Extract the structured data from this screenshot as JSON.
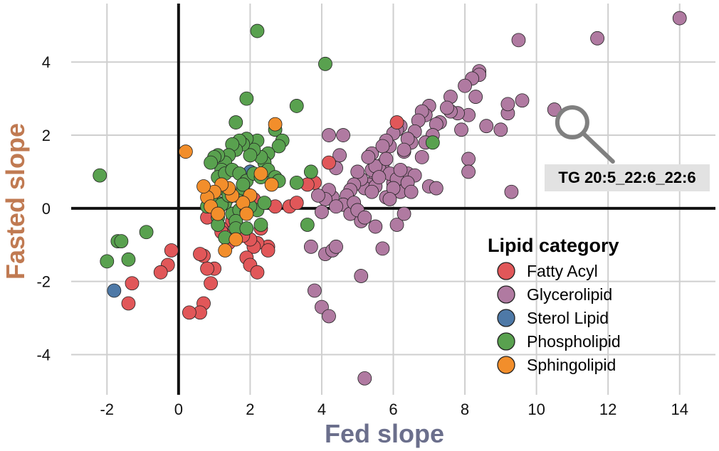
{
  "chart_data": {
    "type": "scatter",
    "xlabel": "Fed slope",
    "ylabel": "Fasted slope",
    "xlabel_color": "#6b6f8c",
    "ylabel_color": "#c07a52",
    "xlim": [
      -3,
      15
    ],
    "ylim": [
      -5.1,
      5.6
    ],
    "xticks": [
      -2,
      0,
      2,
      4,
      6,
      8,
      10,
      12,
      14
    ],
    "xtick_labels": [
      "-2",
      "0",
      "2",
      "4",
      "6",
      "8",
      "10",
      "12",
      "14"
    ],
    "yticks": [
      -4,
      -2,
      0,
      2,
      4
    ],
    "ytick_labels": [
      "-4",
      "-2",
      "0",
      "2",
      "4"
    ],
    "grid": true,
    "zero_lines": true,
    "legend": {
      "title": "Lipid category",
      "placement": "lower-right",
      "entries": [
        "Fatty Acyl",
        "Glycerolipid",
        "Sterol Lipid",
        "Phospholipid",
        "Sphingolipid"
      ]
    },
    "annotation": {
      "text": "TG 20:5_22:6_22:6",
      "x": 11.0,
      "y": 2.35
    },
    "series": [
      {
        "name": "Glycerolipid",
        "color": "#b07aa1",
        "x": [
          14.0,
          11.7,
          9.5,
          10.5,
          9.6,
          9.2,
          9.2,
          9.0,
          8.6,
          8.4,
          8.4,
          8.3,
          8.2,
          8.1,
          8.1,
          8.0,
          7.9,
          7.8,
          7.6,
          7.6,
          7.5,
          7.3,
          7.2,
          7.1,
          7.0,
          6.9,
          6.9,
          6.8,
          6.7,
          6.6,
          6.5,
          6.4,
          6.3,
          6.2,
          6.1,
          6.0,
          5.9,
          5.8,
          5.7,
          5.6,
          5.5,
          5.4,
          5.4,
          5.3,
          5.2,
          5.1,
          5.0,
          4.9,
          4.8,
          4.7,
          4.6,
          4.5,
          4.4,
          4.3,
          4.2,
          4.1,
          4.0,
          3.9,
          3.7,
          5.5,
          5.8,
          6.0,
          6.2,
          6.4,
          6.6,
          6.8,
          7.0,
          5.9,
          6.1,
          6.3,
          5.7,
          5.5,
          5.3,
          5.6,
          5.8,
          6.0,
          6.2,
          6.4,
          5.4,
          4.6,
          4.2,
          4.4,
          4.8,
          5.1,
          4.9,
          5.0,
          5.2,
          6.1,
          6.3,
          5.9,
          6.5,
          7.2,
          8.1,
          9.3,
          4.0,
          4.1,
          4.2,
          5.2,
          3.8,
          4.3,
          4.4,
          5.5,
          5.1,
          5.7
        ],
        "y": [
          5.2,
          4.65,
          4.6,
          2.7,
          2.95,
          2.6,
          2.85,
          2.15,
          2.25,
          3.75,
          3.65,
          3.05,
          3.55,
          2.55,
          1.35,
          3.35,
          2.15,
          2.6,
          3.05,
          2.65,
          2.75,
          2.35,
          2.3,
          2.0,
          2.8,
          1.8,
          2.55,
          2.65,
          2.4,
          2.1,
          1.8,
          1.9,
          1.55,
          2.25,
          2.15,
          2.05,
          1.7,
          1.85,
          1.2,
          1.1,
          0.9,
          1.05,
          1.5,
          0.65,
          0.55,
          0.8,
          1.0,
          0.65,
          0.5,
          0.35,
          0.1,
          1.45,
          1.1,
          0.3,
          0.5,
          0.25,
          -0.1,
          0.35,
          -1.05,
          0.6,
          0.3,
          0.7,
          0.45,
          0.95,
          0.9,
          1.4,
          0.6,
          0.95,
          0.8,
          1.6,
          1.7,
          1.15,
          1.4,
          0.85,
          1.35,
          0.55,
          1.05,
          0.7,
          0.45,
          2.0,
          2.0,
          0.05,
          -0.15,
          -0.35,
          0.15,
          -0.05,
          -0.25,
          -0.45,
          -0.15,
          0.25,
          0.45,
          0.55,
          1.0,
          0.45,
          -2.7,
          -1.25,
          -2.95,
          -4.65,
          -2.25,
          -1.15,
          -1.05,
          -0.5,
          -1.85,
          -1.1
        ]
      },
      {
        "name": "Fatty Acyl",
        "color": "#e15759",
        "x": [
          6.1,
          4.2,
          3.8,
          3.1,
          2.7,
          2.5,
          2.3,
          2.2,
          2.1,
          2.0,
          1.9,
          1.7,
          1.5,
          1.4,
          1.3,
          1.2,
          1.0,
          0.9,
          0.8,
          0.7,
          0.6,
          0.8,
          1.1,
          1.4,
          1.6,
          1.8,
          2.0,
          2.2,
          2.5,
          -0.2,
          -0.3,
          -0.5,
          -1.3,
          -1.4,
          0.7,
          0.6,
          0.3,
          1.2,
          1.5,
          1.9,
          2.1,
          1.7,
          3.3,
          3.6
        ],
        "y": [
          2.35,
          1.25,
          0.7,
          0.05,
          0.05,
          -1.05,
          -0.55,
          -0.95,
          -1.05,
          -0.85,
          -1.35,
          -0.65,
          -0.35,
          -0.95,
          -0.75,
          -0.55,
          -1.65,
          -2.05,
          -1.65,
          -1.3,
          -1.25,
          -0.25,
          -0.05,
          0.3,
          -0.35,
          -0.75,
          -1.55,
          -1.75,
          -1.15,
          -1.15,
          -1.55,
          -1.75,
          -2.05,
          -2.6,
          -2.6,
          -2.85,
          -2.85,
          -0.65,
          -0.75,
          0.1,
          0.25,
          -0.05,
          0.15,
          0.65
        ]
      },
      {
        "name": "Sterol Lipid",
        "color": "#4e79a7",
        "x": [
          -1.8,
          2.0
        ],
        "y": [
          -2.25,
          1.0
        ]
      },
      {
        "name": "Phospholipid",
        "color": "#59a14f",
        "x": [
          2.2,
          4.1,
          3.3,
          1.9,
          1.6,
          2.7,
          2.9,
          2.8,
          2.5,
          2.4,
          2.3,
          2.2,
          2.1,
          2.0,
          1.9,
          1.8,
          1.7,
          1.6,
          1.5,
          1.4,
          1.3,
          1.2,
          1.1,
          1.0,
          0.9,
          1.1,
          1.3,
          1.5,
          1.7,
          1.9,
          2.1,
          2.3,
          2.5,
          2.7,
          3.3,
          3.7,
          3.6,
          1.4,
          1.6,
          1.8,
          2.0,
          1.2,
          1.0,
          0.8,
          1.1,
          1.5,
          1.7,
          1.3,
          1.6,
          1.9,
          2.2,
          2.4,
          2.8,
          0.9,
          1.2,
          1.4,
          1.8,
          2.0,
          -2.2,
          -1.7,
          -1.4,
          -0.9,
          -1.6,
          -2.0,
          7.1,
          1.3,
          1.6,
          1.1,
          1.9,
          2.3
        ],
        "y": [
          4.85,
          3.95,
          2.8,
          3.0,
          2.35,
          2.15,
          1.85,
          1.7,
          1.5,
          1.25,
          1.4,
          1.85,
          1.6,
          1.45,
          1.9,
          1.75,
          1.85,
          1.6,
          1.75,
          1.45,
          1.25,
          1.05,
          1.45,
          1.4,
          1.25,
          0.85,
          0.95,
          1.05,
          0.95,
          0.75,
          0.95,
          0.85,
          1.05,
          0.85,
          0.7,
          1.0,
          -0.45,
          0.45,
          0.35,
          0.55,
          0.35,
          0.55,
          0.25,
          0.05,
          -0.25,
          -0.15,
          -0.05,
          0.15,
          -0.35,
          -0.1,
          -0.05,
          0.15,
          0.75,
          0.25,
          0.1,
          0.35,
          0.65,
          0.05,
          0.9,
          -0.9,
          -1.4,
          -0.65,
          -0.9,
          -1.45,
          1.8,
          -0.8,
          -0.55,
          -0.45,
          -0.55,
          -0.45
        ]
      },
      {
        "name": "Sphingolipid",
        "color": "#f28e2b",
        "x": [
          0.2,
          2.7,
          2.6,
          2.3,
          2.0,
          1.8,
          1.5,
          1.4,
          1.2,
          1.0,
          0.8,
          0.7,
          0.9,
          1.1,
          1.3,
          1.6,
          1.9
        ],
        "y": [
          1.55,
          2.3,
          0.65,
          0.95,
          0.35,
          0.15,
          0.35,
          0.55,
          0.65,
          0.45,
          0.3,
          0.6,
          0.05,
          -0.15,
          -1.15,
          -0.85,
          -0.15
        ]
      }
    ]
  }
}
